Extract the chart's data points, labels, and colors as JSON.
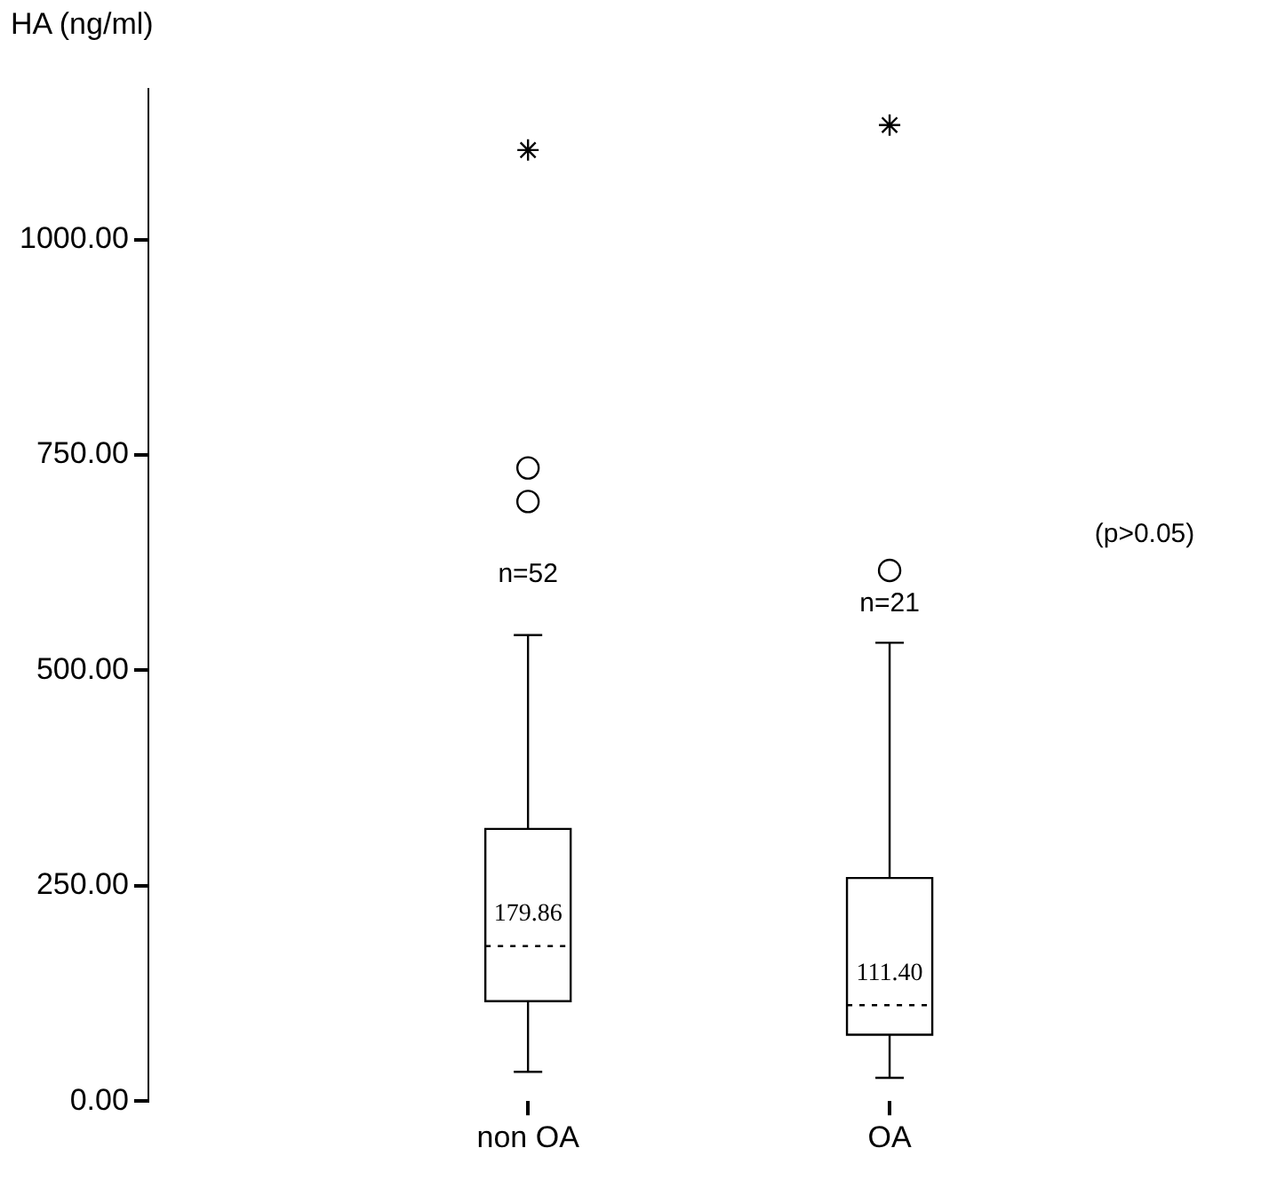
{
  "chart_data": {
    "type": "box",
    "ylabel": "HA (ng/ml)",
    "categories": [
      "non OA",
      "OA"
    ],
    "boxes": [
      {
        "low": 34,
        "q1": 116,
        "median": 179.86,
        "q3": 316,
        "high": 541,
        "outliers": [
          696,
          735,
          1104
        ]
      },
      {
        "low": 27,
        "q1": 77,
        "median": 111.4,
        "q3": 259,
        "high": 532,
        "outliers": [
          616,
          1133
        ]
      }
    ],
    "color": "#000000",
    "ylim": [
      0,
      1175
    ],
    "yticks": [
      {
        "value": 0,
        "label": "0.00"
      },
      {
        "value": 250,
        "label": "250.00"
      },
      {
        "value": 500,
        "label": "500.00"
      },
      {
        "value": 750,
        "label": "750.00"
      },
      {
        "value": 1000,
        "label": "1000.00"
      }
    ],
    "grid": false,
    "legend": false,
    "annotations": [
      {
        "text": "179.86",
        "x": "non OA",
        "y": 179.86
      },
      {
        "text": "111.40",
        "x": "OA",
        "y": 111.4
      },
      "n=52",
      "n=21",
      "(p>0.05)"
    ]
  }
}
